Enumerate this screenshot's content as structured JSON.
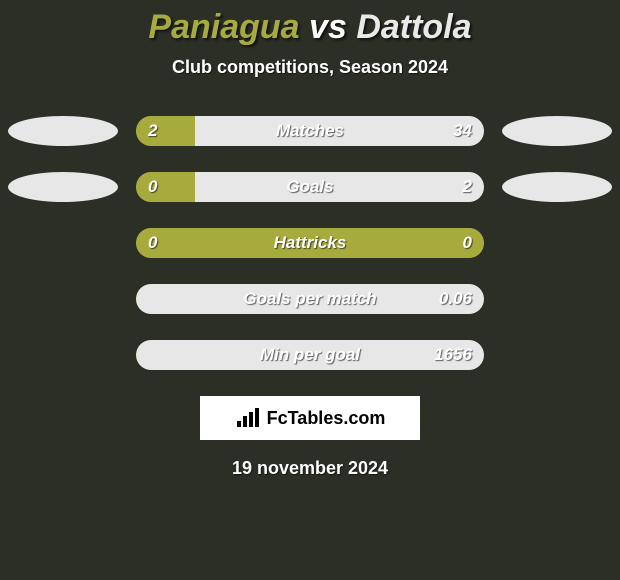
{
  "title": {
    "player1": "Paniagua",
    "vs": "vs",
    "player2": "Dattola",
    "fontsize": 34,
    "color_p1": "#a7ab3e",
    "color_vs": "#ffffff",
    "color_p2": "#e9e9e9"
  },
  "subtitle": "Club competitions, Season 2024",
  "colors": {
    "background": "#2c2f26",
    "bar_left": "#a7ab3e",
    "bar_right": "#e7e7e7",
    "bar_track": "#a7ab3e",
    "oval_left": "#e7e7e7",
    "oval_right": "#e7e7e7",
    "text": "#ffffff"
  },
  "rows": [
    {
      "label": "Matches",
      "left_value": "2",
      "right_value": "34",
      "left_pct": 17,
      "right_pct": 83,
      "show_ovals": true
    },
    {
      "label": "Goals",
      "left_value": "0",
      "right_value": "2",
      "left_pct": 17,
      "right_pct": 83,
      "show_ovals": true
    },
    {
      "label": "Hattricks",
      "left_value": "0",
      "right_value": "0",
      "left_pct": 100,
      "right_pct": 0,
      "show_ovals": false
    },
    {
      "label": "Goals per match",
      "left_value": "",
      "right_value": "0.06",
      "left_pct": 0,
      "right_pct": 100,
      "show_ovals": false
    },
    {
      "label": "Min per goal",
      "left_value": "",
      "right_value": "1656",
      "left_pct": 0,
      "right_pct": 100,
      "show_ovals": false
    }
  ],
  "brand": "FcTables.com",
  "date": "19 november 2024"
}
